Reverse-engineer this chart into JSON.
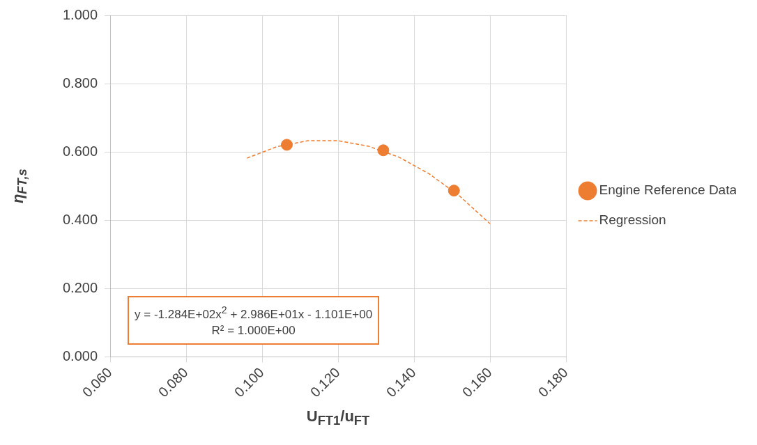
{
  "chart_data": {
    "type": "scatter",
    "xlabel": "U$_{FT1}$/u$_{FT}$",
    "ylabel": "η$_{FT,s}$",
    "xlim": [
      0.06,
      0.18
    ],
    "xticks": [
      {
        "value": 0.06,
        "label": "0.060"
      },
      {
        "value": 0.08,
        "label": "0.080"
      },
      {
        "value": 0.1,
        "label": "0.100"
      },
      {
        "value": 0.12,
        "label": "0.120"
      },
      {
        "value": 0.14,
        "label": "0.140"
      },
      {
        "value": 0.16,
        "label": "0.160"
      },
      {
        "value": 0.18,
        "label": "0.180"
      }
    ],
    "ylim": [
      0,
      1
    ],
    "yticks": [
      {
        "value": 0,
        "label": "0.000"
      },
      {
        "value": 0.2,
        "label": "0.200"
      },
      {
        "value": 0.4,
        "label": "0.400"
      },
      {
        "value": 0.6,
        "label": "0.600"
      },
      {
        "value": 0.8,
        "label": "0.800"
      },
      {
        "value": 1,
        "label": "1.000"
      }
    ],
    "grid": true,
    "legend": "right",
    "series": [
      {
        "name": "Engine Reference Data",
        "color": "#ed7d31",
        "marker": "circle",
        "x": [
          0.1065,
          0.1319,
          0.1505
        ],
        "values": [
          0.621,
          0.605,
          0.487
        ]
      },
      {
        "name": "Regression",
        "type": "line",
        "color": "#ed7d31",
        "line_style": "dashed",
        "marker": "none",
        "x": [
          0.096,
          0.104,
          0.112,
          0.12,
          0.128,
          0.136,
          0.144,
          0.152,
          0.16
        ],
        "values": [
          0.582,
          0.616,
          0.633,
          0.633,
          0.617,
          0.585,
          0.536,
          0.471,
          0.39
        ]
      }
    ],
    "annotations": [
      "y = -1.284E+02x$^{2}$ + 2.986E+01x - 1.101E+00",
      "R² = 1.000E+00"
    ]
  }
}
